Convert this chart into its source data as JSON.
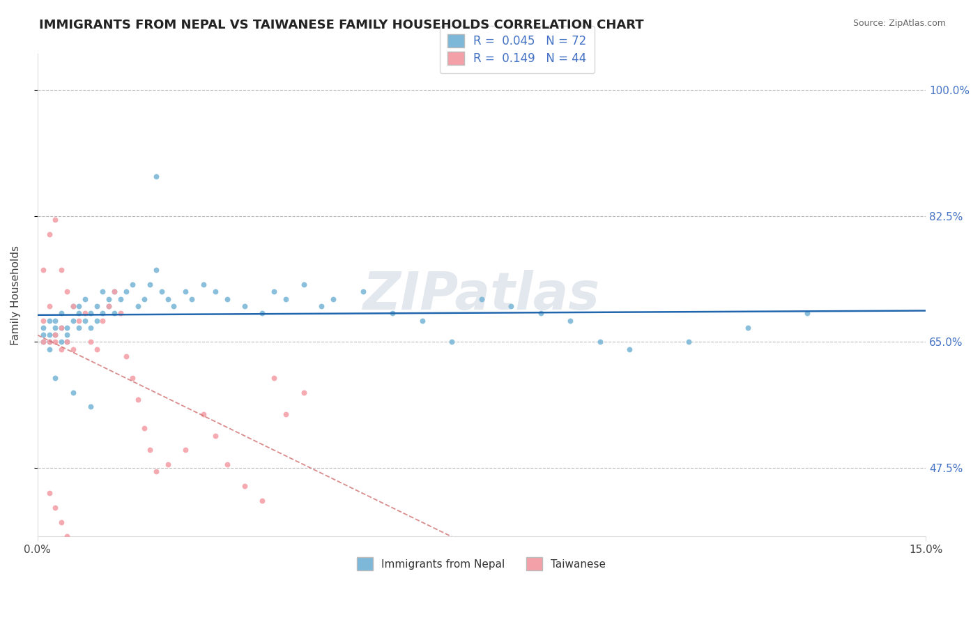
{
  "title": "IMMIGRANTS FROM NEPAL VS TAIWANESE FAMILY HOUSEHOLDS CORRELATION CHART",
  "source": "Source: ZipAtlas.com",
  "ylabel": "Family Households",
  "ytick_labels": [
    "47.5%",
    "65.0%",
    "82.5%",
    "100.0%"
  ],
  "ytick_values": [
    0.475,
    0.65,
    0.825,
    1.0
  ],
  "xlim": [
    0.0,
    0.15
  ],
  "ylim": [
    0.38,
    1.05
  ],
  "legend_r1": "R =  0.045",
  "legend_n1": "N = 72",
  "legend_r2": "R =  0.149",
  "legend_n2": "N = 44",
  "color_nepal": "#7db8d8",
  "color_taiwan": "#f4a0a8",
  "trend_color_nepal": "#2166ac",
  "trend_color_taiwan": "#cc6666",
  "background_color": "#ffffff",
  "watermark": "ZIPatlas",
  "nepal_x": [
    0.001,
    0.001,
    0.001,
    0.002,
    0.002,
    0.002,
    0.002,
    0.003,
    0.003,
    0.003,
    0.004,
    0.004,
    0.004,
    0.005,
    0.005,
    0.005,
    0.006,
    0.006,
    0.007,
    0.007,
    0.007,
    0.008,
    0.008,
    0.009,
    0.009,
    0.01,
    0.01,
    0.011,
    0.011,
    0.012,
    0.012,
    0.013,
    0.013,
    0.014,
    0.015,
    0.016,
    0.017,
    0.018,
    0.019,
    0.02,
    0.021,
    0.022,
    0.023,
    0.025,
    0.026,
    0.028,
    0.03,
    0.032,
    0.035,
    0.038,
    0.04,
    0.042,
    0.045,
    0.048,
    0.05,
    0.055,
    0.06,
    0.065,
    0.07,
    0.075,
    0.08,
    0.085,
    0.09,
    0.095,
    0.1,
    0.11,
    0.12,
    0.13,
    0.003,
    0.006,
    0.009,
    0.02
  ],
  "nepal_y": [
    0.66,
    0.65,
    0.67,
    0.68,
    0.64,
    0.65,
    0.66,
    0.67,
    0.66,
    0.68,
    0.65,
    0.67,
    0.69,
    0.66,
    0.65,
    0.67,
    0.68,
    0.7,
    0.69,
    0.67,
    0.7,
    0.71,
    0.68,
    0.67,
    0.69,
    0.68,
    0.7,
    0.72,
    0.69,
    0.71,
    0.7,
    0.72,
    0.69,
    0.71,
    0.72,
    0.73,
    0.7,
    0.71,
    0.73,
    0.75,
    0.72,
    0.71,
    0.7,
    0.72,
    0.71,
    0.73,
    0.72,
    0.71,
    0.7,
    0.69,
    0.72,
    0.71,
    0.73,
    0.7,
    0.71,
    0.72,
    0.69,
    0.68,
    0.65,
    0.71,
    0.7,
    0.69,
    0.68,
    0.65,
    0.64,
    0.65,
    0.67,
    0.69,
    0.6,
    0.58,
    0.56,
    0.88
  ],
  "taiwan_x": [
    0.001,
    0.001,
    0.001,
    0.002,
    0.002,
    0.002,
    0.003,
    0.003,
    0.003,
    0.004,
    0.004,
    0.004,
    0.005,
    0.005,
    0.006,
    0.006,
    0.007,
    0.008,
    0.009,
    0.01,
    0.011,
    0.012,
    0.013,
    0.014,
    0.015,
    0.016,
    0.017,
    0.018,
    0.019,
    0.02,
    0.022,
    0.025,
    0.028,
    0.03,
    0.032,
    0.035,
    0.038,
    0.04,
    0.042,
    0.045,
    0.002,
    0.003,
    0.004,
    0.005
  ],
  "taiwan_y": [
    0.65,
    0.75,
    0.68,
    0.8,
    0.7,
    0.65,
    0.82,
    0.66,
    0.65,
    0.75,
    0.67,
    0.64,
    0.72,
    0.65,
    0.7,
    0.64,
    0.68,
    0.69,
    0.65,
    0.64,
    0.68,
    0.7,
    0.72,
    0.69,
    0.63,
    0.6,
    0.57,
    0.53,
    0.5,
    0.47,
    0.48,
    0.5,
    0.55,
    0.52,
    0.48,
    0.45,
    0.43,
    0.6,
    0.55,
    0.58,
    0.44,
    0.42,
    0.4,
    0.38
  ]
}
